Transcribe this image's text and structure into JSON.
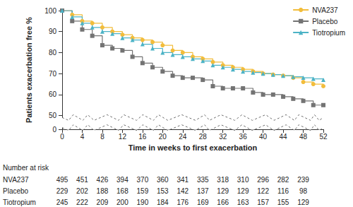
{
  "chart_data": {
    "type": "line",
    "x_label": "Time in weeks to first exacerbation",
    "y_label": "Patients exacerbation free %",
    "xlim": [
      0,
      52
    ],
    "xticks": [
      0,
      4,
      8,
      12,
      16,
      20,
      24,
      28,
      32,
      36,
      40,
      44,
      48,
      52
    ],
    "ylim": [
      0,
      100
    ],
    "yticks": [
      0,
      50,
      60,
      70,
      80,
      90,
      100
    ],
    "grid": false,
    "legend": "top-right",
    "line_style": "step",
    "series": [
      {
        "name": "NVA237",
        "color": "#f2bd3c",
        "marker": "circle",
        "x": [
          0,
          2,
          4,
          6,
          8,
          10,
          12,
          14,
          16,
          18,
          20,
          22,
          24,
          26,
          28,
          30,
          32,
          34,
          36,
          38,
          40,
          42,
          44,
          46,
          48,
          50,
          52
        ],
        "values": [
          100,
          98,
          95,
          94,
          92,
          90,
          88.5,
          87,
          86,
          85,
          83.5,
          81,
          80,
          78,
          77,
          75.5,
          74,
          73,
          72,
          71,
          70,
          69.5,
          69,
          68,
          66,
          65,
          64
        ]
      },
      {
        "name": "Placebo",
        "color": "#737373",
        "marker": "square",
        "x": [
          0,
          2,
          4,
          6,
          8,
          10,
          12,
          14,
          16,
          18,
          20,
          22,
          24,
          26,
          28,
          30,
          32,
          34,
          36,
          38,
          40,
          42,
          44,
          46,
          48,
          50,
          52
        ],
        "values": [
          100,
          95,
          91,
          88,
          83.5,
          82,
          81,
          78,
          75,
          73,
          71,
          69,
          68,
          68,
          67,
          64,
          63,
          63,
          63,
          61,
          60,
          60,
          59,
          58,
          57,
          55,
          55
        ]
      },
      {
        "name": "Tiotropium",
        "color": "#4cb3c6",
        "marker": "triangle",
        "x": [
          0,
          2,
          4,
          6,
          8,
          10,
          12,
          14,
          16,
          18,
          20,
          22,
          24,
          26,
          28,
          30,
          32,
          34,
          36,
          38,
          40,
          42,
          44,
          46,
          48,
          50,
          52
        ],
        "values": [
          100,
          97,
          94,
          92,
          90,
          89,
          87,
          86,
          84,
          82,
          80,
          79,
          78,
          77,
          76,
          74,
          73,
          72,
          71,
          70.5,
          70,
          69.5,
          69,
          68.5,
          68,
          67.5,
          67
        ]
      }
    ],
    "number_at_risk": {
      "title": "Number at risk",
      "weeks": [
        0,
        4,
        8,
        12,
        16,
        20,
        24,
        28,
        32,
        36,
        40,
        44,
        48
      ],
      "rows": [
        {
          "name": "NVA237",
          "values": [
            495,
            451,
            426,
            394,
            370,
            360,
            341,
            335,
            318,
            310,
            296,
            282,
            239
          ]
        },
        {
          "name": "Placebo",
          "values": [
            229,
            202,
            188,
            168,
            159,
            153,
            142,
            137,
            129,
            129,
            122,
            116,
            98
          ]
        },
        {
          "name": "Tiotropium",
          "values": [
            245,
            222,
            209,
            200,
            190,
            184,
            176,
            169,
            166,
            163,
            157,
            155,
            129
          ]
        }
      ]
    }
  }
}
